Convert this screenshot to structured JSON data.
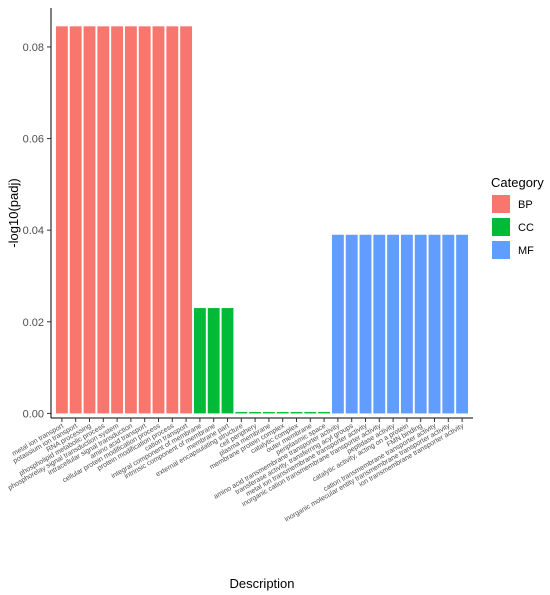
{
  "chart_data": {
    "type": "bar",
    "title": "",
    "xlabel": "Description",
    "ylabel": "-log10(padj)",
    "ylim": [
      -0.001,
      0.0885
    ],
    "yticks": [
      0.0,
      0.02,
      0.04,
      0.06,
      0.08
    ],
    "ytick_labels": [
      "0.00",
      "0.02",
      "0.04",
      "0.06",
      "0.08"
    ],
    "grid": false,
    "legend": {
      "title": "Category",
      "position": "right",
      "entries": [
        {
          "name": "BP",
          "color": "#F8766D"
        },
        {
          "name": "CC",
          "color": "#00BA38"
        },
        {
          "name": "MF",
          "color": "#619CFF"
        }
      ]
    },
    "categories": [
      "metal ion transport",
      "potassium ion transport",
      "RNA processing",
      "phospholipid metabolic process",
      "phosphorelay signal transduction system",
      "intracellular signal transduction",
      "amino acid transport",
      "cellular protein modification process",
      "protein modification process",
      "cation transport",
      "integral component of membrane",
      "intrinsic component of membrane",
      "membrane part",
      "external encapsulating structure",
      "cell periphery",
      "plasma membrane",
      "membrane protein complex",
      "catalytic complex",
      "outer membrane",
      "periplasmic space",
      "amino acid transmembrane transporter activity",
      "transferase activity, transferring acyl groups",
      "metal ion transmembrane transporter activity",
      "inorganic cation transmembrane transporter activity",
      "peptidase activity",
      "catalytic activity, acting on a protein",
      "FMN binding",
      "cation transmembrane transporter activity",
      "inorganic molecular entity transmembrane transporter activity",
      "ion transmembrane transporter activity"
    ],
    "category_group": [
      "BP",
      "BP",
      "BP",
      "BP",
      "BP",
      "BP",
      "BP",
      "BP",
      "BP",
      "BP",
      "CC",
      "CC",
      "CC",
      "CC",
      "CC",
      "CC",
      "CC",
      "CC",
      "CC",
      "CC",
      "MF",
      "MF",
      "MF",
      "MF",
      "MF",
      "MF",
      "MF",
      "MF",
      "MF",
      "MF"
    ],
    "values": [
      0.0845,
      0.0845,
      0.0845,
      0.0845,
      0.0845,
      0.0845,
      0.0845,
      0.0845,
      0.0845,
      0.0845,
      0.023,
      0.023,
      0.023,
      0.0003,
      0.0003,
      0.0003,
      0.0003,
      0.0003,
      0.0003,
      0.0003,
      0.039,
      0.039,
      0.039,
      0.039,
      0.039,
      0.039,
      0.039,
      0.039,
      0.039,
      0.039
    ]
  }
}
